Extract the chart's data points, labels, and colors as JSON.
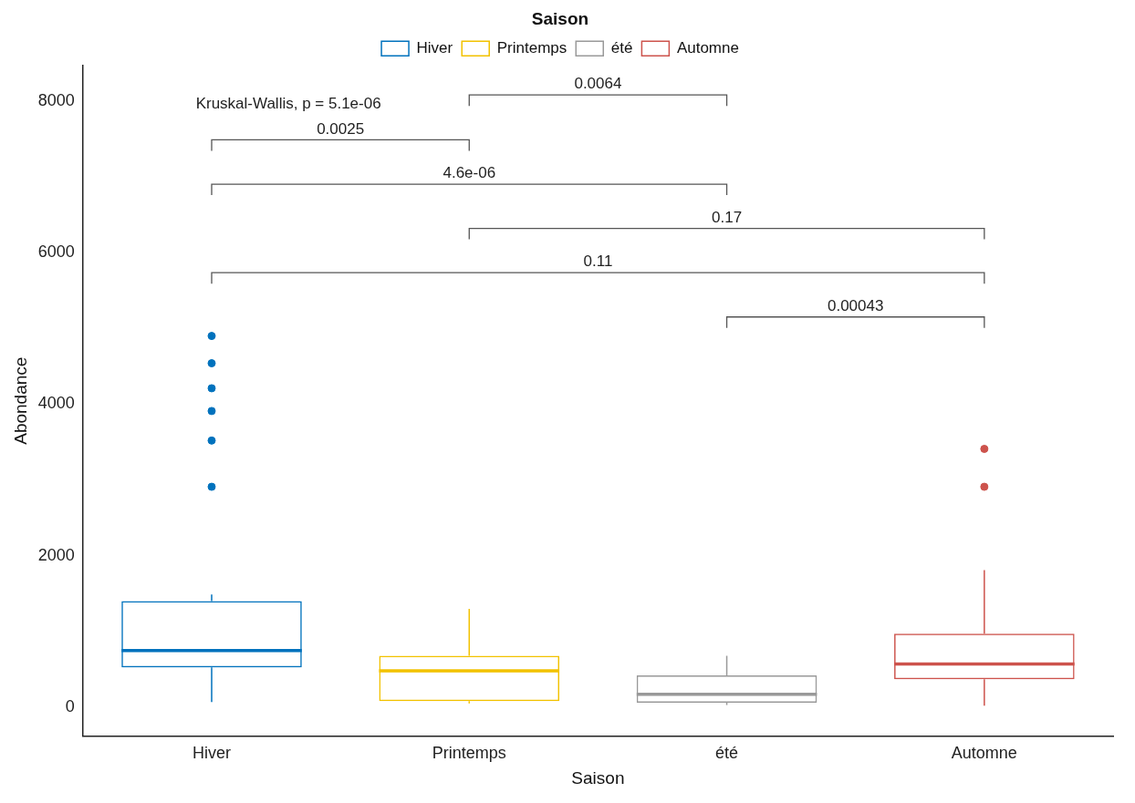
{
  "chart_data": {
    "type": "box",
    "xlabel": "Saison",
    "ylabel": "Abondance",
    "legend_title": "Saison",
    "legend": "top",
    "categories": [
      "Hiver",
      "Printemps",
      "été",
      "Automne"
    ],
    "series": [
      {
        "name": "Hiver",
        "color": "#0072bd",
        "boxes": [
          {
            "low": 70,
            "q1": 525,
            "median": 750,
            "q3": 1400,
            "high": 1490,
            "outliers": [
              4900,
              4540,
              4210,
              3910,
              3520,
              2910
            ]
          },
          null,
          null,
          null
        ]
      },
      {
        "name": "Printemps",
        "color": "#f2c200",
        "boxes": [
          null,
          {
            "low": 50,
            "q1": 80,
            "median": 480,
            "q3": 680,
            "high": 1300
          },
          null,
          null
        ]
      },
      {
        "name": "été",
        "color": "#999999",
        "boxes": [
          null,
          null,
          {
            "low": 30,
            "q1": 60,
            "median": 170,
            "q3": 420,
            "high": 680
          },
          null
        ]
      },
      {
        "name": "Automne",
        "color": "#cd534c",
        "boxes": [
          null,
          null,
          null,
          {
            "low": 20,
            "q1": 370,
            "median": 570,
            "q3": 970,
            "high": 1810,
            "outliers": [
              3410,
              2910
            ]
          }
        ]
      }
    ],
    "ylim": [
      -380,
      8470
    ],
    "yticks": [
      0,
      2000,
      4000,
      6000,
      8000
    ],
    "grid": false,
    "marker": "circle",
    "annotations": [
      "Kruskal-Wallis, p = 5.1e-06",
      "0.0064",
      "0.0025",
      "4.6e-06",
      "0.17",
      "0.11",
      "0.00043"
    ]
  }
}
